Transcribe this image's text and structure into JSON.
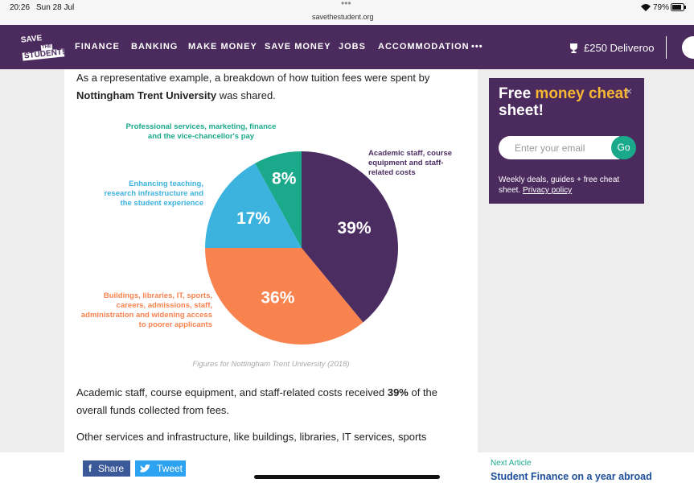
{
  "status_bar": {
    "time": "20:26",
    "date": "Sun 28 Jul",
    "url": "savethestudent.org",
    "battery": "79%"
  },
  "nav": {
    "logo": [
      "SAVE",
      "THE",
      "STUDENT!"
    ],
    "items": [
      "FINANCE",
      "BANKING",
      "MAKE MONEY",
      "SAVE MONEY",
      "JOBS",
      "ACCOMMODATION",
      "•••"
    ],
    "promo": "£250 Deliveroo"
  },
  "article": {
    "intro": {
      "before": "As a representative example, a breakdown of how tuition fees were spent by ",
      "bold": "Nottingham Trent University",
      "after": " was shared."
    },
    "chart": {
      "type": "pie",
      "categories": [
        "Academic staff, course equipment and staff-related costs",
        "Buildings, libraries, IT, sports, careers, admissions, staff, administration and widening access to poorer applicants",
        "Enhancing teaching, research infrastructure and the student experience",
        "Professional services, marketing, finance and the vice-chancellor's pay"
      ],
      "values": [
        39,
        36,
        17,
        8
      ],
      "value_labels": [
        "39%",
        "36%",
        "17%",
        "8%"
      ],
      "colors": [
        "#4b2d62",
        "#f8834f",
        "#3cb2df",
        "#1ba98b"
      ],
      "caption": "Figures for Nottingham Trent University (2018)"
    },
    "para2": {
      "before": "Academic staff, course equipment, and staff-related costs received ",
      "bold": "39%",
      "after": " of the overall funds collected from fees."
    },
    "para3": "Other services and infrastructure, like buildings, libraries, IT services, sports"
  },
  "sidebar": {
    "title": {
      "before": "Free ",
      "highlight": "money cheat",
      "after": " sheet!"
    },
    "close": "×",
    "placeholder": "Enter your email",
    "button": "Go",
    "note": "Weekly deals, guides + free cheat sheet. ",
    "link": "Privacy policy"
  },
  "footer": {
    "share": "Share",
    "tweet": "Tweet",
    "next_label": "Next Article",
    "next_title": "Student Finance on a year abroad"
  }
}
